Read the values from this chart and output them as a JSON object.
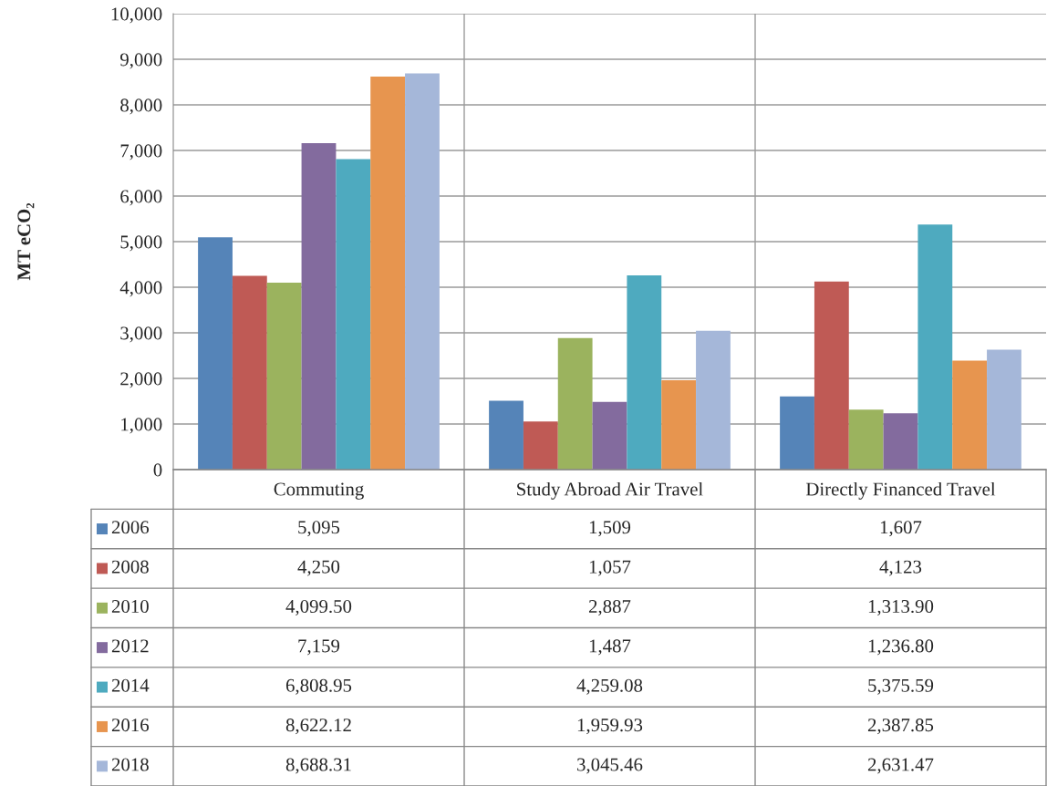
{
  "chart_data": {
    "type": "bar",
    "ylabel": "MT eCO₂",
    "categories": [
      "Commuting",
      "Study Abroad Air Travel",
      "Directly Financed Travel"
    ],
    "series": [
      {
        "name": "2006",
        "color": "#5584b8",
        "values": [
          5095,
          1509,
          1607
        ],
        "value_labels": [
          "5,095",
          "1,509",
          "1,607"
        ]
      },
      {
        "name": "2008",
        "color": "#bf5a55",
        "values": [
          4250,
          1057,
          4123
        ],
        "value_labels": [
          "4,250",
          "1,057",
          "4,123"
        ]
      },
      {
        "name": "2010",
        "color": "#9bb35e",
        "values": [
          4099.5,
          2887,
          1313.9
        ],
        "value_labels": [
          "4,099.50",
          "2,887",
          "1,313.90"
        ]
      },
      {
        "name": "2012",
        "color": "#836b9e",
        "values": [
          7159,
          1487,
          1236.8
        ],
        "value_labels": [
          "7,159",
          "1,487",
          "1,236.80"
        ]
      },
      {
        "name": "2014",
        "color": "#4eaabf",
        "values": [
          6808.95,
          4259.08,
          5375.59
        ],
        "value_labels": [
          "6,808.95",
          "4,259.08",
          "5,375.59"
        ]
      },
      {
        "name": "2016",
        "color": "#e7954f",
        "values": [
          8622.12,
          1959.93,
          2387.85
        ],
        "value_labels": [
          "8,622.12",
          "1,959.93",
          "2,387.85"
        ]
      },
      {
        "name": "2018",
        "color": "#a5b7d9",
        "values": [
          8688.31,
          3045.46,
          2631.47
        ],
        "value_labels": [
          "8,688.31",
          "3,045.46",
          "2,631.47"
        ]
      }
    ],
    "ylim": [
      0,
      10000
    ],
    "yticks": [
      0,
      {
        "value": 1000,
        "label": "1,000"
      },
      {
        "value": 2000,
        "label": "2,000"
      },
      {
        "value": 3000,
        "label": "3,000"
      },
      {
        "value": 4000,
        "label": "4,000"
      },
      {
        "value": 5000,
        "label": "5,000"
      },
      {
        "value": 6000,
        "label": "6,000"
      },
      {
        "value": 7000,
        "label": "7,000"
      },
      {
        "value": 8000,
        "label": "8,000"
      },
      {
        "value": 9000,
        "label": "9,000"
      },
      {
        "value": 10000,
        "label": "10,000"
      }
    ],
    "grid": true,
    "legend": "bottom"
  }
}
